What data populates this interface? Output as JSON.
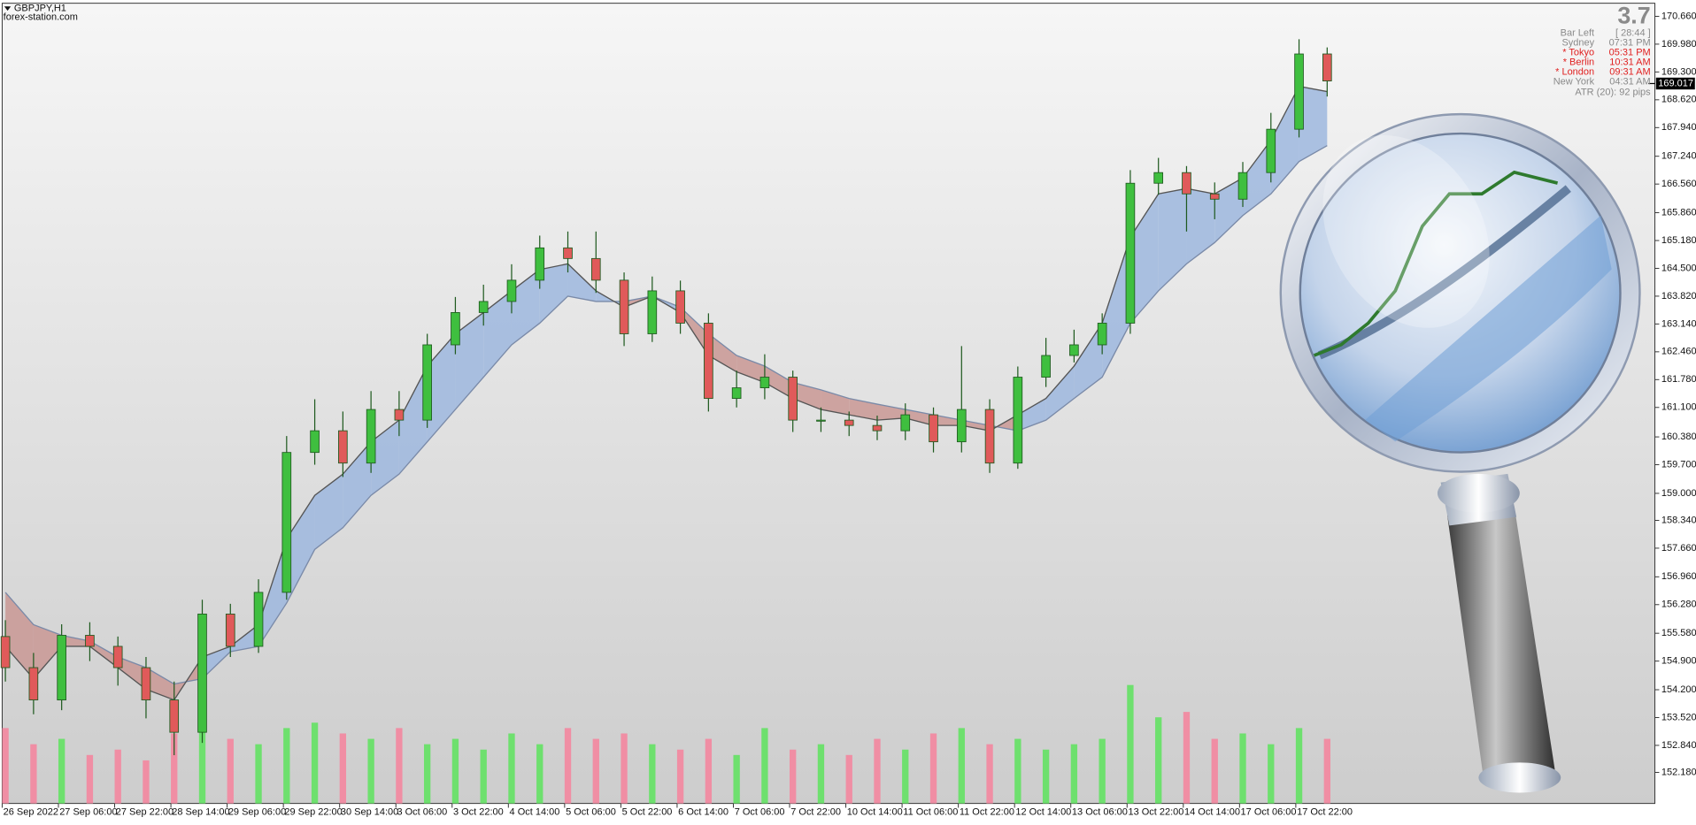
{
  "chart_data": {
    "type": "candlestick",
    "symbol": "GBPJPY,H1",
    "source": "forex-station.com",
    "spread": "3.7",
    "x_labels": [
      "26 Sep 2022",
      "27 Sep 06:00",
      "27 Sep 22:00",
      "28 Sep 14:00",
      "29 Sep 06:00",
      "29 Sep 22:00",
      "30 Sep 14:00",
      "3 Oct 06:00",
      "3 Oct 22:00",
      "4 Oct 14:00",
      "5 Oct 06:00",
      "5 Oct 22:00",
      "6 Oct 14:00",
      "7 Oct 06:00",
      "7 Oct 22:00",
      "10 Oct 14:00",
      "11 Oct 06:00",
      "11 Oct 22:00",
      "12 Oct 14:00",
      "13 Oct 06:00",
      "13 Oct 22:00",
      "14 Oct 14:00",
      "17 Oct 06:00",
      "17 Oct 22:00"
    ],
    "ylim": [
      151.42,
      170.98
    ],
    "yticks": [
      {
        "value": 170.66,
        "label": "170.660"
      },
      {
        "value": 169.98,
        "label": "169.980"
      },
      {
        "value": 169.3,
        "label": "169.300"
      },
      {
        "value": 168.62,
        "label": "168.620"
      },
      {
        "value": 167.94,
        "label": "167.940"
      },
      {
        "value": 167.24,
        "label": "167.240"
      },
      {
        "value": 166.56,
        "label": "166.560"
      },
      {
        "value": 165.86,
        "label": "165.860"
      },
      {
        "value": 165.18,
        "label": "165.180"
      },
      {
        "value": 164.5,
        "label": "164.500"
      },
      {
        "value": 163.82,
        "label": "163.820"
      },
      {
        "value": 163.14,
        "label": "163.140"
      },
      {
        "value": 162.46,
        "label": "162.460"
      },
      {
        "value": 161.78,
        "label": "161.780"
      },
      {
        "value": 161.1,
        "label": "161.100"
      },
      {
        "value": 160.38,
        "label": "160.380"
      },
      {
        "value": 159.7,
        "label": "159.700"
      },
      {
        "value": 159,
        "label": "159.000"
      },
      {
        "value": 158.34,
        "label": "158.340"
      },
      {
        "value": 157.66,
        "label": "157.660"
      },
      {
        "value": 156.96,
        "label": "156.960"
      },
      {
        "value": 156.28,
        "label": "156.280"
      },
      {
        "value": 155.58,
        "label": "155.580"
      },
      {
        "value": 154.9,
        "label": "154.900"
      },
      {
        "value": 154.2,
        "label": "154.200"
      },
      {
        "value": 153.52,
        "label": "153.520"
      },
      {
        "value": 152.84,
        "label": "152.840"
      },
      {
        "value": 152.18,
        "label": "152.180"
      }
    ],
    "current_price": 169.017,
    "open": [
      155.5,
      154.74,
      153.95,
      155.53,
      155.26,
      154.74,
      153.95,
      153.16,
      156.05,
      155.26,
      156.58,
      160.0,
      160.53,
      159.74,
      161.05,
      160.79,
      162.63,
      163.42,
      163.69,
      164.21,
      165.0,
      164.74,
      164.21,
      162.9,
      163.95,
      163.16,
      161.32,
      161.58,
      161.84,
      160.79,
      160.79,
      160.66,
      160.53,
      160.92,
      160.26,
      161.05,
      159.74,
      161.84,
      162.37,
      162.63,
      163.16,
      166.58,
      166.84,
      166.32,
      166.19,
      166.84,
      167.9,
      169.74
    ],
    "high": [
      155.9,
      155.1,
      155.8,
      155.85,
      155.5,
      155.0,
      154.4,
      156.4,
      156.3,
      156.9,
      160.4,
      161.3,
      161.0,
      161.5,
      161.5,
      162.9,
      163.8,
      164.1,
      164.6,
      165.3,
      165.4,
      165.4,
      164.4,
      164.3,
      164.2,
      163.4,
      162.0,
      162.4,
      162.0,
      161.1,
      161.0,
      160.9,
      161.2,
      161.1,
      162.6,
      161.3,
      162.1,
      162.8,
      163.0,
      163.4,
      166.9,
      167.2,
      167.0,
      166.6,
      167.1,
      168.3,
      170.1,
      169.9
    ],
    "low": [
      154.4,
      153.6,
      153.7,
      154.9,
      154.3,
      153.5,
      152.6,
      152.9,
      155.0,
      155.1,
      156.4,
      159.7,
      159.4,
      159.5,
      160.4,
      160.6,
      162.4,
      163.1,
      163.4,
      164.0,
      164.4,
      163.9,
      162.6,
      162.7,
      162.9,
      161.0,
      161.1,
      161.3,
      160.5,
      160.5,
      160.4,
      160.3,
      160.3,
      160.0,
      160.0,
      159.5,
      159.6,
      161.6,
      162.2,
      162.4,
      162.9,
      166.3,
      165.4,
      165.7,
      166.0,
      166.6,
      167.7,
      168.7
    ],
    "close": [
      154.74,
      153.95,
      155.53,
      155.26,
      154.74,
      153.95,
      153.16,
      156.05,
      155.26,
      156.58,
      160.0,
      160.53,
      159.74,
      161.05,
      160.79,
      162.63,
      163.42,
      163.69,
      164.21,
      165.0,
      164.74,
      164.21,
      162.9,
      163.95,
      163.16,
      161.32,
      161.58,
      161.84,
      160.79,
      160.79,
      160.66,
      160.53,
      160.92,
      160.26,
      161.05,
      159.74,
      161.84,
      162.37,
      162.63,
      163.16,
      166.58,
      166.84,
      166.32,
      166.19,
      166.84,
      167.9,
      169.74,
      169.08
    ],
    "fast": [
      155.26,
      154.47,
      155.26,
      155.26,
      154.74,
      154.21,
      153.95,
      155.0,
      155.26,
      155.79,
      157.89,
      158.95,
      159.47,
      160.26,
      160.79,
      162.11,
      162.9,
      163.42,
      163.95,
      164.47,
      164.61,
      163.95,
      163.55,
      163.82,
      163.42,
      162.37,
      161.97,
      161.71,
      161.32,
      161.05,
      160.92,
      160.79,
      160.84,
      160.66,
      160.66,
      160.53,
      160.92,
      161.32,
      162.11,
      163.16,
      165.26,
      166.32,
      166.45,
      166.32,
      166.71,
      167.63,
      168.95,
      168.82
    ],
    "slow": [
      156.58,
      155.79,
      155.53,
      155.39,
      155.0,
      154.74,
      154.34,
      154.47,
      155.13,
      155.26,
      156.32,
      157.63,
      158.16,
      158.95,
      159.47,
      160.26,
      161.05,
      161.84,
      162.63,
      163.16,
      163.82,
      163.69,
      163.69,
      163.82,
      163.55,
      162.9,
      162.37,
      162.11,
      161.71,
      161.53,
      161.32,
      161.18,
      161.05,
      160.92,
      160.79,
      160.66,
      160.53,
      160.79,
      161.32,
      161.84,
      163.16,
      163.95,
      164.61,
      165.13,
      165.79,
      166.32,
      167.11,
      167.5
    ],
    "volume": [
      70,
      55,
      60,
      45,
      50,
      40,
      65,
      80,
      60,
      55,
      70,
      75,
      65,
      60,
      70,
      55,
      60,
      50,
      65,
      55,
      70,
      60,
      65,
      55,
      50,
      60,
      45,
      70,
      50,
      55,
      45,
      60,
      50,
      65,
      70,
      55,
      60,
      50,
      55,
      60,
      110,
      80,
      85,
      60,
      65,
      55,
      70,
      60
    ],
    "colors": {
      "bull": "#3fbf3f",
      "bear": "#e05a5a",
      "wick": "#1f5a1f",
      "band_up": "#9db7de",
      "band_down": "#c99894",
      "fast": "#555555",
      "slow": "#7a8aa8",
      "vol_up": "#6ee06e",
      "vol_down": "#f08ea4"
    },
    "info_rows": [
      {
        "label": "Bar Left",
        "value": "[ 28:44 ]",
        "active": false
      },
      {
        "label": "Sydney",
        "value": "07:31 PM",
        "active": false
      },
      {
        "label": "* Tokyo",
        "value": "05:31 PM",
        "active": true
      },
      {
        "label": "* Berlin",
        "value": "10:31 AM",
        "active": true
      },
      {
        "label": "* London",
        "value": "09:31 AM",
        "active": true
      },
      {
        "label": "New York",
        "value": "04:31 AM",
        "active": false
      }
    ],
    "atr": "ATR (20): 92 pips"
  }
}
